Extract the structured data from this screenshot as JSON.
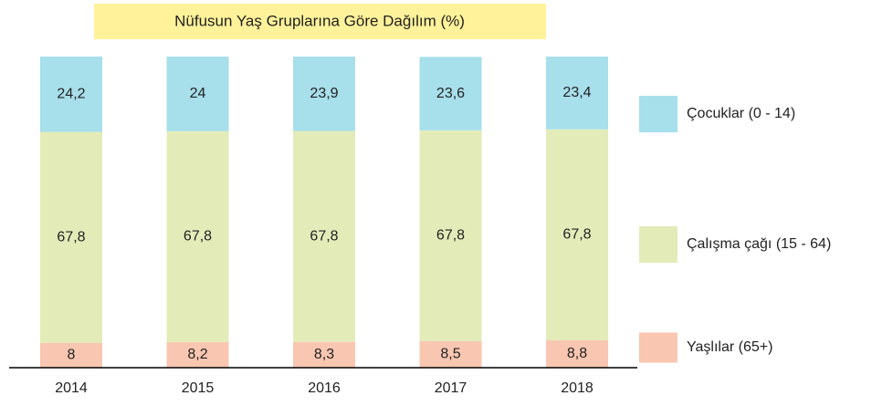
{
  "chart_data": {
    "type": "stacked_bar",
    "title": "Nüfusun Yaş Gruplarına Göre Dağılım (%)",
    "categories": [
      "2014",
      "2015",
      "2016",
      "2017",
      "2018"
    ],
    "series": [
      {
        "name": "Yaşlılar (65+)",
        "color": "#f9c6b1",
        "values": [
          8,
          8.2,
          8.3,
          8.5,
          8.8
        ],
        "value_labels": [
          "8",
          "8,2",
          "8,3",
          "8,5",
          "8,8"
        ]
      },
      {
        "name": "Çalışma çağı (15 - 64)",
        "color": "#e3ecb9",
        "values": [
          67.8,
          67.8,
          67.8,
          67.8,
          67.8
        ],
        "value_labels": [
          "67,8",
          "67,8",
          "67,8",
          "67,8",
          "67,8"
        ]
      },
      {
        "name": "Çocuklar (0 - 14)",
        "color": "#a7dfeb",
        "values": [
          24.2,
          24,
          23.9,
          23.6,
          23.4
        ],
        "value_labels": [
          "24,2",
          "24",
          "23,9",
          "23,6",
          "23,4"
        ]
      }
    ]
  }
}
